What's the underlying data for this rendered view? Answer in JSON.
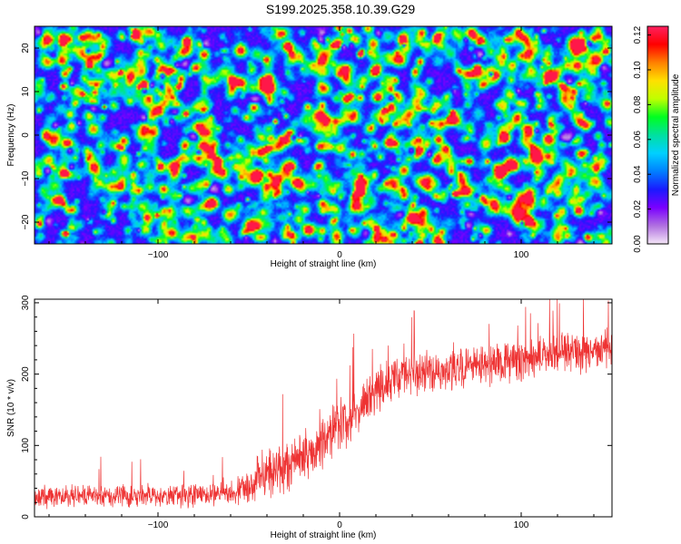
{
  "title": "S199.2025.358.10.39.G29",
  "chart_data": [
    {
      "type": "heatmap",
      "name": "spectrogram",
      "xlabel": "Height of straight line (km)",
      "ylabel": "Frequency (Hz)",
      "xlim": [
        -168,
        150
      ],
      "ylim": [
        -25,
        25
      ],
      "xticks": [
        -100,
        0,
        100
      ],
      "yticks": [
        -20,
        -10,
        0,
        10,
        20
      ],
      "colorbar": {
        "label": "Normalized spectral amplitude",
        "range": [
          0,
          0.125
        ],
        "ticks": [
          "0.00",
          "0.02",
          "0.04",
          "0.06",
          "0.08",
          "0.10",
          "0.12"
        ],
        "colors": [
          "#f4e6f7",
          "#b070e0",
          "#7a00ff",
          "#1a1aff",
          "#0080ff",
          "#00d0ff",
          "#00e0a0",
          "#00ff20",
          "#c0ff00",
          "#ffe000",
          "#ff8000",
          "#ff0000",
          "#ff2060"
        ]
      },
      "description": "noise-like spectral amplitude field, mostly 0.02-0.06 with scattered peaks up to 0.12"
    },
    {
      "type": "line",
      "name": "snr",
      "xlabel": "Height of straight line (km)",
      "ylabel": "SNR (10 * v/v)",
      "xlim": [
        -168,
        150
      ],
      "ylim": [
        0,
        305
      ],
      "xticks": [
        -100,
        0,
        100
      ],
      "yticks": [
        0,
        100,
        200,
        300
      ],
      "color": "#ee3333",
      "trend": [
        [
          -168,
          28
        ],
        [
          -120,
          30
        ],
        [
          -80,
          30
        ],
        [
          -60,
          32
        ],
        [
          -50,
          45
        ],
        [
          -40,
          60
        ],
        [
          -30,
          70
        ],
        [
          -20,
          85
        ],
        [
          -10,
          105
        ],
        [
          0,
          125
        ],
        [
          10,
          150
        ],
        [
          20,
          175
        ],
        [
          30,
          195
        ],
        [
          40,
          200
        ],
        [
          60,
          205
        ],
        [
          80,
          212
        ],
        [
          100,
          220
        ],
        [
          120,
          228
        ],
        [
          150,
          235
        ]
      ],
      "noise_amplitude": [
        [
          -168,
          13
        ],
        [
          -60,
          14
        ],
        [
          -45,
          28
        ],
        [
          -20,
          32
        ],
        [
          0,
          30
        ],
        [
          30,
          24
        ],
        [
          150,
          24
        ]
      ],
      "peak_max": 305
    }
  ]
}
